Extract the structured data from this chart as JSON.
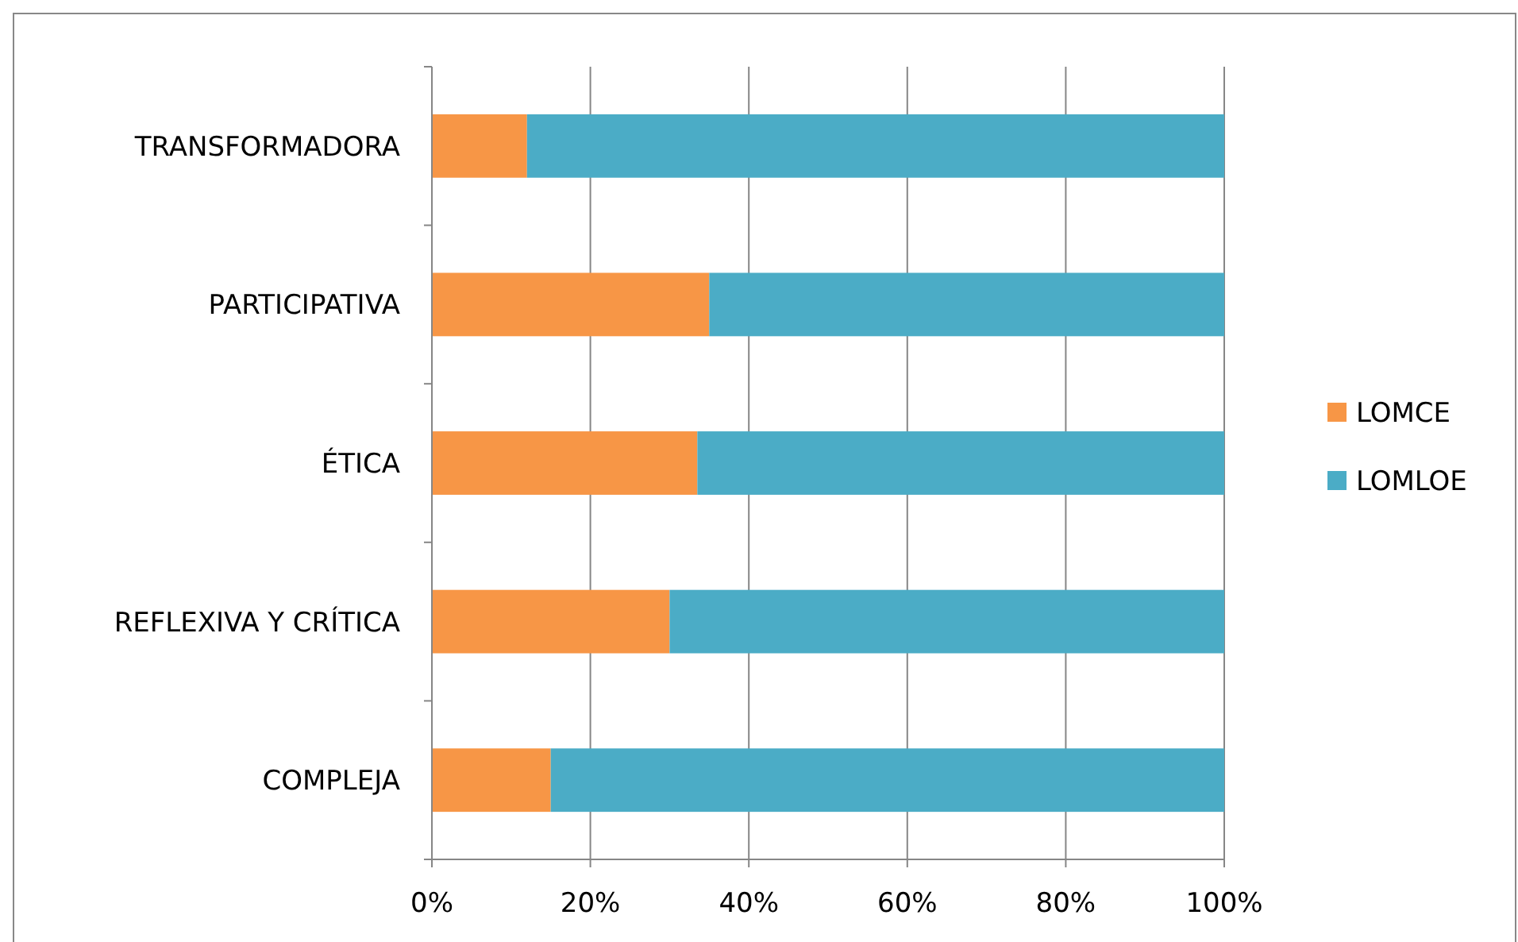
{
  "chart_data": {
    "type": "bar",
    "orientation": "horizontal",
    "stacked": true,
    "categories": [
      "TRANSFORMADORA",
      "PARTICIPATIVA",
      "ÉTICA",
      "REFLEXIVA Y CRÍTICA",
      "COMPLEJA"
    ],
    "series": [
      {
        "name": "LOMCE",
        "color": "#f79646",
        "values": [
          12,
          35,
          33.5,
          30,
          15
        ]
      },
      {
        "name": "LOMLOE",
        "color": "#4bacc6",
        "values": [
          88,
          65,
          66.5,
          70,
          85
        ]
      }
    ],
    "xlim": [
      0,
      100
    ],
    "xticks": [
      {
        "value": 0,
        "label": "0%"
      },
      {
        "value": 20,
        "label": "20%"
      },
      {
        "value": 40,
        "label": "40%"
      },
      {
        "value": 60,
        "label": "60%"
      },
      {
        "value": 80,
        "label": "80%"
      },
      {
        "value": 100,
        "label": "100%"
      }
    ],
    "grid": "x",
    "legend": "right"
  }
}
